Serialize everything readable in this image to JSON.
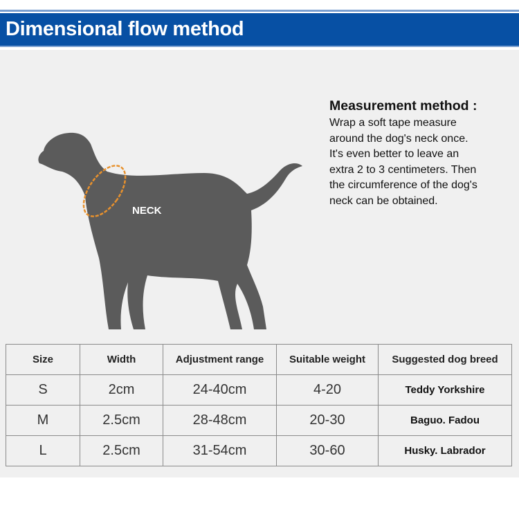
{
  "header": {
    "title": "Dimensional flow method"
  },
  "illustration": {
    "neck_label": "NECK",
    "body_color": "#5b5b5b",
    "tape_color": "#e8912d"
  },
  "method": {
    "heading": "Measurement method :",
    "lines": [
      "Wrap a soft tape measure",
      "around the dog's neck once.",
      "It's even better to leave an",
      "extra 2 to 3 centimeters. Then",
      "the circumference of the dog's",
      "neck can be obtained."
    ]
  },
  "table": {
    "headers": [
      "Size",
      "Width",
      "Adjustment range",
      "Suitable weight",
      "Suggested dog breed"
    ],
    "rows": [
      [
        "S",
        "2cm",
        "24-40cm",
        "4-20",
        "Teddy Yorkshire"
      ],
      [
        "M",
        "2.5cm",
        "28-48cm",
        "20-30",
        "Baguo. Fadou"
      ],
      [
        "L",
        "2.5cm",
        "31-54cm",
        "30-60",
        "Husky. Labrador"
      ]
    ]
  },
  "colors": {
    "banner": "#0750a4",
    "panel": "#f0f0f0"
  }
}
